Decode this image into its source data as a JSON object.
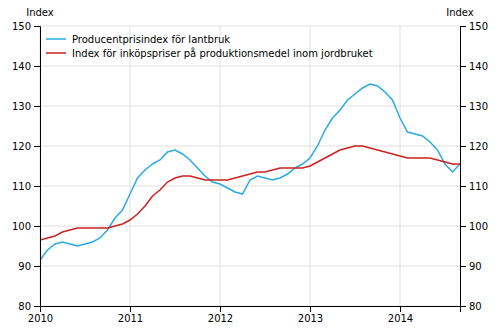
{
  "chart_data": {
    "type": "line",
    "ylabel": "Index",
    "y2label": "Index",
    "categories": [
      "2010",
      null,
      null,
      null,
      null,
      null,
      null,
      null,
      null,
      null,
      null,
      null,
      "2011",
      null,
      null,
      null,
      null,
      null,
      null,
      null,
      null,
      null,
      null,
      null,
      "2012",
      null,
      null,
      null,
      null,
      null,
      null,
      null,
      null,
      null,
      null,
      null,
      "2013",
      null,
      null,
      null,
      null,
      null,
      null,
      null,
      null,
      null,
      null,
      null,
      "2014",
      null,
      null,
      null,
      null,
      null,
      null,
      null,
      null
    ],
    "series": [
      {
        "name": "Producentprisindex för lantbruk",
        "color": "#29ABE2",
        "values": [
          91.5,
          94.0,
          95.5,
          96.0,
          95.5,
          95.0,
          95.5,
          96.0,
          97.0,
          99.0,
          102.0,
          104.0,
          108.0,
          112.0,
          114.0,
          115.5,
          116.5,
          118.5,
          119.0,
          118.0,
          116.5,
          114.5,
          112.5,
          111.0,
          110.5,
          109.5,
          108.5,
          108.0,
          111.5,
          112.5,
          112.0,
          111.5,
          112.0,
          113.0,
          114.5,
          115.5,
          117.0,
          120.0,
          124.0,
          127.0,
          129.0,
          131.5,
          133.0,
          134.5,
          135.5,
          135.0,
          133.5,
          131.5,
          127.0,
          123.5,
          123.0,
          122.5,
          121.0,
          119.0,
          115.5,
          113.5,
          115.5
        ]
      },
      {
        "name": "Index för inköpspriser på produktionsmedel inom jordbruket",
        "color": "#CC2222",
        "values": [
          96.5,
          97.0,
          97.5,
          98.5,
          99.0,
          99.5,
          99.5,
          99.5,
          99.5,
          99.5,
          100.0,
          100.5,
          101.5,
          103.0,
          105.0,
          107.5,
          109.0,
          111.0,
          112.0,
          112.5,
          112.5,
          112.0,
          111.5,
          111.5,
          111.5,
          111.5,
          112.0,
          112.5,
          113.0,
          113.5,
          113.5,
          114.0,
          114.5,
          114.5,
          114.5,
          114.5,
          115.0,
          116.0,
          117.0,
          118.0,
          119.0,
          119.5,
          120.0,
          120.0,
          119.5,
          119.0,
          118.5,
          118.0,
          117.5,
          117.0,
          117.0,
          117.0,
          117.0,
          116.5,
          116.0,
          115.5,
          115.5
        ]
      }
    ],
    "ylim": [
      80,
      150
    ],
    "yticks": [
      80,
      90,
      100,
      110,
      120,
      130,
      140,
      150
    ],
    "y2lim": [
      80,
      150
    ],
    "y2ticks": [
      80,
      90,
      100,
      110,
      120,
      130,
      140,
      150
    ],
    "grid": true,
    "legend": "upper left"
  }
}
